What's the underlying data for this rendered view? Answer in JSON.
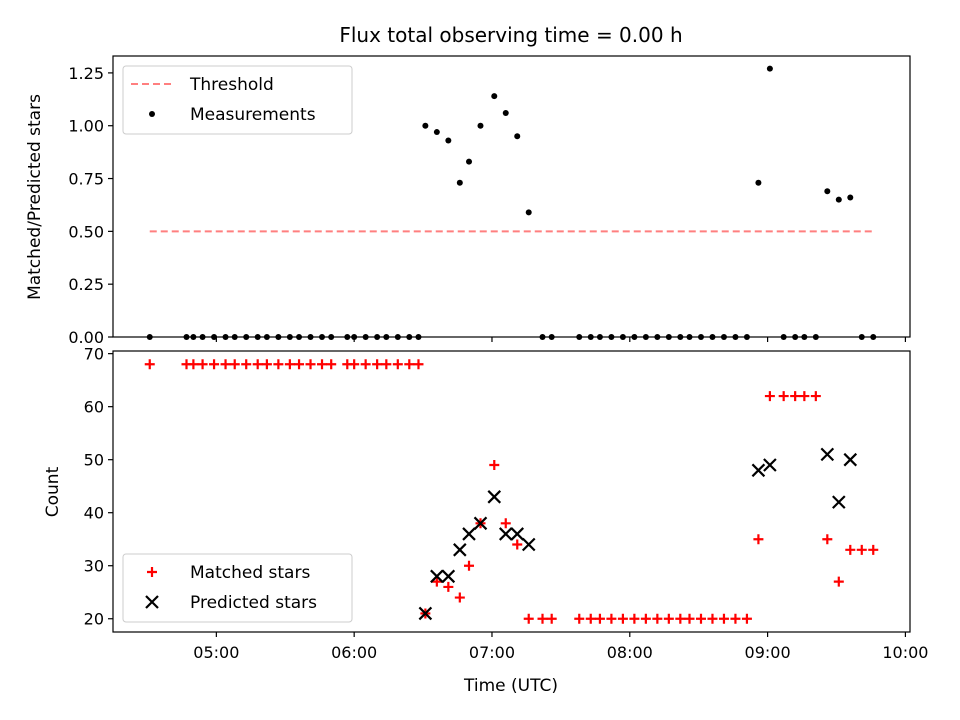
{
  "chart_data": [
    {
      "type": "scatter",
      "title": "Flux total observing time = 0.00 h",
      "xlabel": "",
      "ylabel": "Matched/Predicted stars",
      "xlim": [
        "04:15",
        "10:02"
      ],
      "ylim": [
        0,
        1.33
      ],
      "yticks": [
        {
          "v": 0,
          "label": "0.00"
        },
        {
          "v": 0.25,
          "label": "0.25"
        },
        {
          "v": 0.5,
          "label": "0.50"
        },
        {
          "v": 0.75,
          "label": "0.75"
        },
        {
          "v": 1.0,
          "label": "1.00"
        },
        {
          "v": 1.25,
          "label": "1.25"
        }
      ],
      "grid": false,
      "legend_position": "top-left",
      "series": [
        {
          "name": "Threshold",
          "style": "dashed-line",
          "color": "#ff7f7f",
          "points": [
            [
              "04:31",
              0.5
            ],
            [
              "09:46",
              0.5
            ]
          ]
        },
        {
          "name": "Measurements",
          "style": "dot",
          "color": "#000000",
          "points": [
            [
              "04:31",
              0
            ],
            [
              "04:47",
              0
            ],
            [
              "04:50",
              0
            ],
            [
              "04:54",
              0
            ],
            [
              "04:59",
              0
            ],
            [
              "05:04",
              0
            ],
            [
              "05:08",
              0
            ],
            [
              "05:13",
              0
            ],
            [
              "05:18",
              0
            ],
            [
              "05:22",
              0
            ],
            [
              "05:27",
              0
            ],
            [
              "05:32",
              0
            ],
            [
              "05:36",
              0
            ],
            [
              "05:41",
              0
            ],
            [
              "05:46",
              0
            ],
            [
              "05:50",
              0
            ],
            [
              "05:57",
              0
            ],
            [
              "06:00",
              0
            ],
            [
              "06:05",
              0
            ],
            [
              "06:10",
              0
            ],
            [
              "06:14",
              0
            ],
            [
              "06:19",
              0
            ],
            [
              "06:24",
              0
            ],
            [
              "06:28",
              0
            ],
            [
              "06:31",
              1.0
            ],
            [
              "06:36",
              0.97
            ],
            [
              "06:41",
              0.93
            ],
            [
              "06:46",
              0.73
            ],
            [
              "06:50",
              0.83
            ],
            [
              "06:55",
              1.0
            ],
            [
              "07:01",
              1.14
            ],
            [
              "07:06",
              1.06
            ],
            [
              "07:11",
              0.95
            ],
            [
              "07:16",
              0.59
            ],
            [
              "07:22",
              0
            ],
            [
              "07:26",
              0
            ],
            [
              "07:38",
              0
            ],
            [
              "07:43",
              0
            ],
            [
              "07:47",
              0
            ],
            [
              "07:52",
              0
            ],
            [
              "07:57",
              0
            ],
            [
              "08:02",
              0
            ],
            [
              "08:07",
              0
            ],
            [
              "08:12",
              0
            ],
            [
              "08:17",
              0
            ],
            [
              "08:22",
              0
            ],
            [
              "08:26",
              0
            ],
            [
              "08:31",
              0
            ],
            [
              "08:36",
              0
            ],
            [
              "08:41",
              0
            ],
            [
              "08:46",
              0
            ],
            [
              "08:51",
              0
            ],
            [
              "08:56",
              0.73
            ],
            [
              "09:01",
              1.27
            ],
            [
              "09:07",
              0
            ],
            [
              "09:12",
              0
            ],
            [
              "09:16",
              0
            ],
            [
              "09:21",
              0
            ],
            [
              "09:26",
              0.69
            ],
            [
              "09:31",
              0.65
            ],
            [
              "09:36",
              0.66
            ],
            [
              "09:41",
              0
            ],
            [
              "09:46",
              0
            ]
          ]
        }
      ]
    },
    {
      "type": "scatter",
      "title": "",
      "xlabel": "Time (UTC)",
      "ylabel": "Count",
      "xlim": [
        "04:15",
        "10:02"
      ],
      "ylim": [
        17.5,
        70.5
      ],
      "xticks": [
        "05:00",
        "06:00",
        "07:00",
        "08:00",
        "09:00",
        "10:00"
      ],
      "yticks": [
        {
          "v": 20,
          "label": "20"
        },
        {
          "v": 30,
          "label": "30"
        },
        {
          "v": 40,
          "label": "40"
        },
        {
          "v": 50,
          "label": "50"
        },
        {
          "v": 60,
          "label": "60"
        },
        {
          "v": 70,
          "label": "70"
        }
      ],
      "grid": false,
      "legend_position": "bottom-left",
      "series": [
        {
          "name": "Matched stars",
          "style": "plus",
          "color": "#ff0000",
          "points": [
            [
              "04:31",
              68
            ],
            [
              "04:47",
              68
            ],
            [
              "04:50",
              68
            ],
            [
              "04:54",
              68
            ],
            [
              "04:59",
              68
            ],
            [
              "05:04",
              68
            ],
            [
              "05:08",
              68
            ],
            [
              "05:13",
              68
            ],
            [
              "05:18",
              68
            ],
            [
              "05:22",
              68
            ],
            [
              "05:27",
              68
            ],
            [
              "05:32",
              68
            ],
            [
              "05:36",
              68
            ],
            [
              "05:41",
              68
            ],
            [
              "05:46",
              68
            ],
            [
              "05:50",
              68
            ],
            [
              "05:57",
              68
            ],
            [
              "06:00",
              68
            ],
            [
              "06:05",
              68
            ],
            [
              "06:10",
              68
            ],
            [
              "06:14",
              68
            ],
            [
              "06:19",
              68
            ],
            [
              "06:24",
              68
            ],
            [
              "06:28",
              68
            ],
            [
              "06:31",
              21
            ],
            [
              "06:36",
              27
            ],
            [
              "06:41",
              26
            ],
            [
              "06:46",
              24
            ],
            [
              "06:50",
              30
            ],
            [
              "06:55",
              38
            ],
            [
              "07:01",
              49
            ],
            [
              "07:06",
              38
            ],
            [
              "07:11",
              34
            ],
            [
              "07:16",
              20
            ],
            [
              "07:22",
              20
            ],
            [
              "07:26",
              20
            ],
            [
              "07:38",
              20
            ],
            [
              "07:43",
              20
            ],
            [
              "07:47",
              20
            ],
            [
              "07:52",
              20
            ],
            [
              "07:57",
              20
            ],
            [
              "08:02",
              20
            ],
            [
              "08:07",
              20
            ],
            [
              "08:12",
              20
            ],
            [
              "08:17",
              20
            ],
            [
              "08:22",
              20
            ],
            [
              "08:26",
              20
            ],
            [
              "08:31",
              20
            ],
            [
              "08:36",
              20
            ],
            [
              "08:41",
              20
            ],
            [
              "08:46",
              20
            ],
            [
              "08:51",
              20
            ],
            [
              "08:56",
              35
            ],
            [
              "09:01",
              62
            ],
            [
              "09:07",
              62
            ],
            [
              "09:12",
              62
            ],
            [
              "09:16",
              62
            ],
            [
              "09:21",
              62
            ],
            [
              "09:26",
              35
            ],
            [
              "09:31",
              27
            ],
            [
              "09:36",
              33
            ],
            [
              "09:41",
              33
            ],
            [
              "09:46",
              33
            ]
          ]
        },
        {
          "name": "Predicted stars",
          "style": "x",
          "color": "#000000",
          "points": [
            [
              "06:31",
              21
            ],
            [
              "06:36",
              28
            ],
            [
              "06:41",
              28
            ],
            [
              "06:46",
              33
            ],
            [
              "06:50",
              36
            ],
            [
              "06:55",
              38
            ],
            [
              "07:01",
              43
            ],
            [
              "07:06",
              36
            ],
            [
              "07:11",
              36
            ],
            [
              "07:16",
              34
            ],
            [
              "08:56",
              48
            ],
            [
              "09:01",
              49
            ],
            [
              "09:26",
              51
            ],
            [
              "09:31",
              42
            ],
            [
              "09:36",
              50
            ]
          ]
        }
      ]
    }
  ]
}
